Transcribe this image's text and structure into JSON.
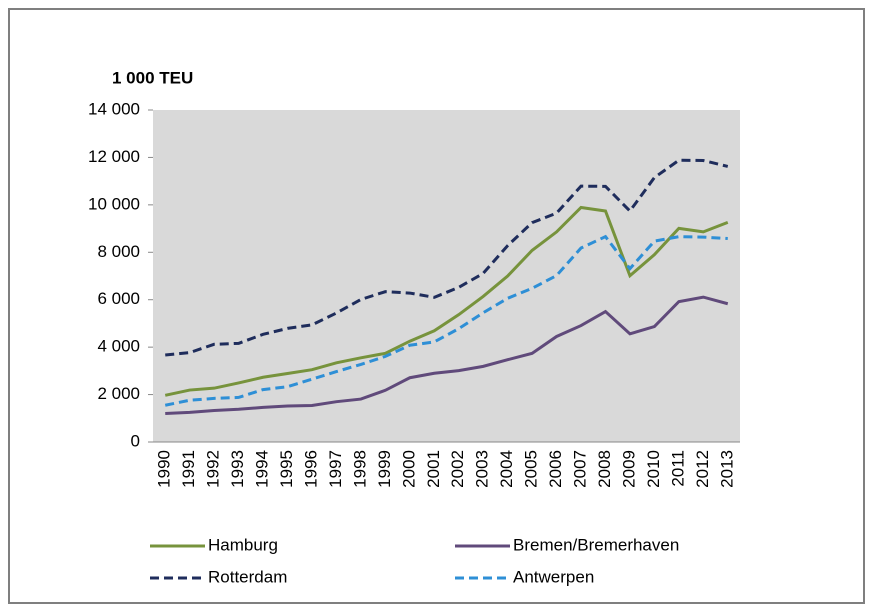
{
  "chart_data": {
    "type": "line",
    "y_axis_label": "1 000 TEU",
    "categories": [
      "1990",
      "1991",
      "1992",
      "1993",
      "1994",
      "1995",
      "1996",
      "1997",
      "1998",
      "1999",
      "2000",
      "2001",
      "2002",
      "2003",
      "2004",
      "2005",
      "2006",
      "2007",
      "2008",
      "2009",
      "2010",
      "2011",
      "2012",
      "2013"
    ],
    "series": [
      {
        "name": "Hamburg",
        "color": "#77933c",
        "dashed": false,
        "values": [
          1970,
          2190,
          2270,
          2490,
          2730,
          2890,
          3050,
          3340,
          3550,
          3740,
          4250,
          4690,
          5370,
          6140,
          7000,
          8080,
          8860,
          9890,
          9740,
          7010,
          7900,
          9010,
          8860,
          9260
        ]
      },
      {
        "name": "Bremen/Bremerhaven",
        "color": "#604a7b",
        "dashed": false,
        "values": [
          1200,
          1250,
          1330,
          1380,
          1460,
          1520,
          1540,
          1700,
          1810,
          2180,
          2710,
          2900,
          3010,
          3190,
          3470,
          3740,
          4450,
          4910,
          5500,
          4560,
          4870,
          5920,
          6110,
          5830
        ]
      },
      {
        "name": "Rotterdam",
        "color": "#1f2d5c",
        "dashed": true,
        "values": [
          3670,
          3770,
          4120,
          4160,
          4540,
          4790,
          4940,
          5440,
          6010,
          6340,
          6280,
          6100,
          6520,
          7110,
          8280,
          9250,
          9650,
          10790,
          10780,
          9740,
          11150,
          11880,
          11870,
          11620
        ]
      },
      {
        "name": "Antwerpen",
        "color": "#2e8fd6",
        "dashed": true,
        "values": [
          1550,
          1760,
          1840,
          1880,
          2210,
          2330,
          2650,
          2970,
          3270,
          3610,
          4080,
          4220,
          4780,
          5450,
          6060,
          6480,
          7020,
          8180,
          8660,
          7310,
          8470,
          8660,
          8640,
          8580
        ]
      }
    ],
    "ylim": [
      0,
      14000
    ],
    "yticks": [
      0,
      {
        "value": 2000,
        "label": "2 000"
      },
      {
        "value": 4000,
        "label": "4 000"
      },
      {
        "value": 6000,
        "label": "6 000"
      },
      {
        "value": 8000,
        "label": "8 000"
      },
      {
        "value": 10000,
        "label": "10 000"
      },
      {
        "value": 12000,
        "label": "12 000"
      },
      {
        "value": 14000,
        "label": "14 000"
      }
    ],
    "plot_background": "#d9d9d9",
    "legend": "bottom"
  }
}
